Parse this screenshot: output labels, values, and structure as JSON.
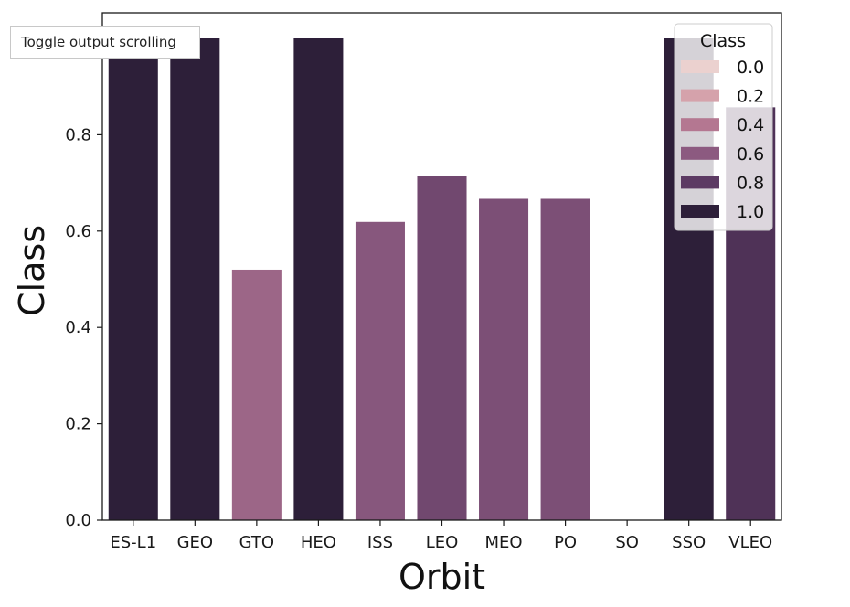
{
  "overlay": {
    "tooltip_text": "Toggle output scrolling"
  },
  "chart_data": {
    "type": "bar",
    "categories": [
      "ES-L1",
      "GEO",
      "GTO",
      "HEO",
      "ISS",
      "LEO",
      "MEO",
      "PO",
      "SO",
      "SSO",
      "VLEO"
    ],
    "values": [
      1.0,
      1.0,
      0.52,
      1.0,
      0.619,
      0.714,
      0.667,
      0.667,
      0.0,
      1.0,
      0.857
    ],
    "title": "",
    "xlabel": "Orbit",
    "ylabel": "Class",
    "ylim": [
      0,
      1.0
    ],
    "yticks": [
      0.0,
      0.2,
      0.4,
      0.6,
      0.8
    ],
    "grid": false,
    "legend": {
      "title": "Class",
      "placement": "top-right",
      "entries": [
        {
          "label": "0.0",
          "value": 0.0,
          "color": "#ebd1cf"
        },
        {
          "label": "0.2",
          "value": 0.2,
          "color": "#d5a2ab"
        },
        {
          "label": "0.4",
          "value": 0.4,
          "color": "#b47791"
        },
        {
          "label": "0.6",
          "value": 0.6,
          "color": "#8c5a80"
        },
        {
          "label": "0.8",
          "value": 0.8,
          "color": "#5c3a63"
        },
        {
          "label": "1.0",
          "value": 1.0,
          "color": "#2d1f39"
        }
      ]
    }
  }
}
